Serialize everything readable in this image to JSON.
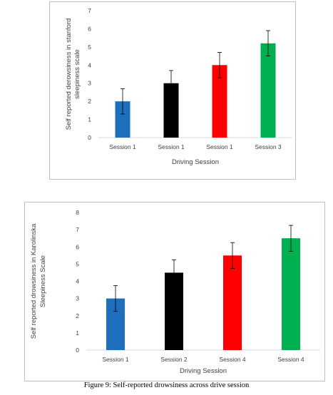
{
  "chart_data": [
    {
      "type": "bar",
      "categories": [
        "Session 1",
        "Session 1",
        "Session 1",
        "Session 3"
      ],
      "values": [
        2.0,
        3.0,
        4.0,
        5.2
      ],
      "errors": [
        0.7,
        0.7,
        0.7,
        0.7
      ],
      "colors": [
        "#1f6fbf",
        "#000000",
        "#ff0000",
        "#00b050"
      ],
      "xlabel": "Driving Session",
      "ylabel_lines": [
        "Self reported derowsiness in stanford",
        "sleepiness scale"
      ],
      "ylim": [
        0,
        7
      ],
      "yticks": [
        0,
        1,
        2,
        3,
        4,
        5,
        6,
        7
      ],
      "grid": false,
      "legend": "none"
    },
    {
      "type": "bar",
      "categories": [
        "Session 1",
        "Session 2",
        "Session 4",
        "Session 4"
      ],
      "values": [
        3.0,
        4.5,
        5.5,
        6.5
      ],
      "errors": [
        0.75,
        0.75,
        0.75,
        0.75
      ],
      "colors": [
        "#1f6fbf",
        "#000000",
        "#ff0000",
        "#00b050"
      ],
      "xlabel": "Driving Session",
      "ylabel_lines": [
        "Self reported drowsiness in Karolinska",
        "Sleepiness Scale"
      ],
      "ylim": [
        0,
        8
      ],
      "yticks": [
        0,
        1,
        2,
        3,
        4,
        5,
        6,
        7,
        8
      ],
      "grid": false,
      "legend": "none"
    }
  ],
  "caption": "Figure 9: Self-reported drowsiness across drive session"
}
